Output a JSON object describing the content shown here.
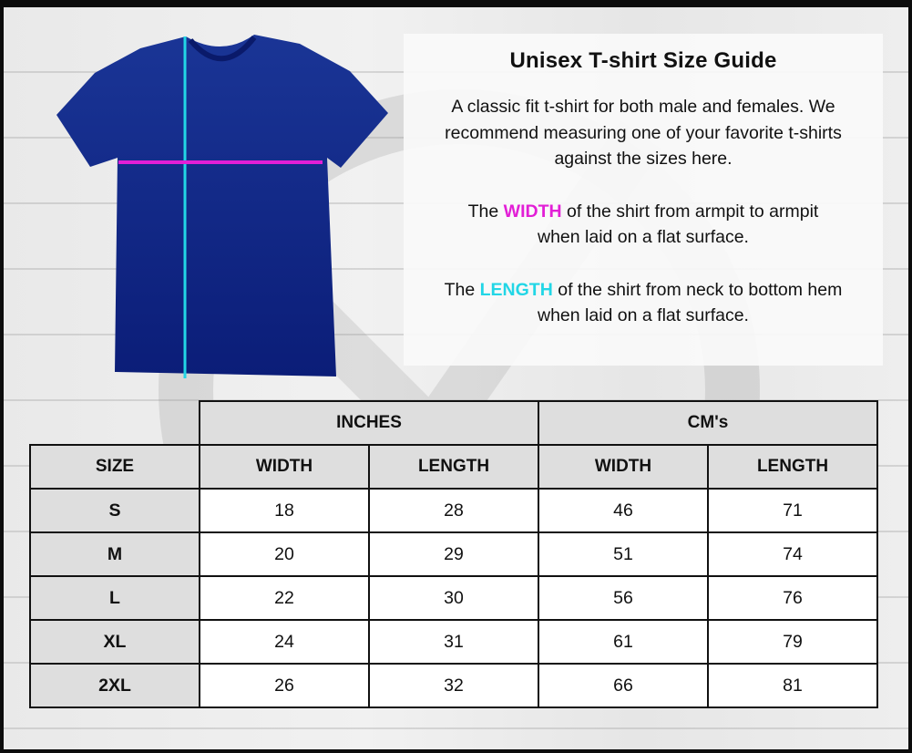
{
  "colors": {
    "width": "#e21fd6",
    "length": "#22d6e6",
    "shirt": "#132f8f"
  },
  "info": {
    "title": "Unisex T-shirt Size Guide",
    "intro": [
      "A classic fit t-shirt for both male and females. We",
      "recommend measuring one of your favorite t-shirts",
      "against the sizes here."
    ],
    "width_note": {
      "pre": "The ",
      "key": "WIDTH",
      "post": " of the shirt from armpit to armpit",
      "line2": "when laid on a flat surface."
    },
    "length_note": {
      "pre": "The ",
      "key": "LENGTH",
      "post": " of the shirt from neck to bottom hem",
      "line2": "when laid on a flat surface."
    }
  },
  "table": {
    "groups": [
      "INCHES",
      "CM's"
    ],
    "headers": [
      "SIZE",
      "WIDTH",
      "LENGTH",
      "WIDTH",
      "LENGTH"
    ],
    "rows": [
      [
        "S",
        "18",
        "28",
        "46",
        "71"
      ],
      [
        "M",
        "20",
        "29",
        "51",
        "74"
      ],
      [
        "L",
        "22",
        "30",
        "56",
        "76"
      ],
      [
        "XL",
        "24",
        "31",
        "61",
        "79"
      ],
      [
        "2XL",
        "26",
        "32",
        "66",
        "81"
      ]
    ]
  }
}
